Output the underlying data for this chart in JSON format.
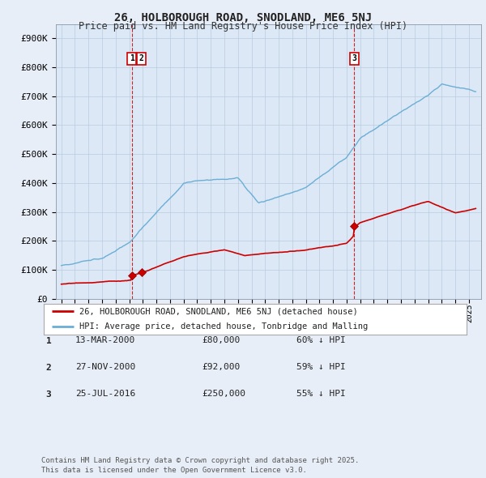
{
  "title": "26, HOLBOROUGH ROAD, SNODLAND, ME6 5NJ",
  "subtitle": "Price paid vs. HM Land Registry's House Price Index (HPI)",
  "hpi_color": "#6baed6",
  "price_color": "#cc0000",
  "background_color": "#e8eef8",
  "plot_bg_color": "#dce8f5",
  "ylim": [
    0,
    950000
  ],
  "yticks": [
    0,
    100000,
    200000,
    300000,
    400000,
    500000,
    600000,
    700000,
    800000,
    900000
  ],
  "ytick_labels": [
    "£0",
    "£100K",
    "£200K",
    "£300K",
    "£400K",
    "£500K",
    "£600K",
    "£700K",
    "£800K",
    "£900K"
  ],
  "transactions": [
    {
      "date_num": 2000.19,
      "price": 80000,
      "label": "1"
    },
    {
      "date_num": 2000.9,
      "price": 92000,
      "label": "2"
    },
    {
      "date_num": 2016.56,
      "price": 250000,
      "label": "3"
    }
  ],
  "vline_dates": [
    2000.19,
    2016.56
  ],
  "legend_entries": [
    "26, HOLBOROUGH ROAD, SNODLAND, ME6 5NJ (detached house)",
    "HPI: Average price, detached house, Tonbridge and Malling"
  ],
  "table_rows": [
    {
      "num": "1",
      "date": "13-MAR-2000",
      "price": "£80,000",
      "pct": "60% ↓ HPI"
    },
    {
      "num": "2",
      "date": "27-NOV-2000",
      "price": "£92,000",
      "pct": "59% ↓ HPI"
    },
    {
      "num": "3",
      "date": "25-JUL-2016",
      "price": "£250,000",
      "pct": "55% ↓ HPI"
    }
  ],
  "footnote": "Contains HM Land Registry data © Crown copyright and database right 2025.\nThis data is licensed under the Open Government Licence v3.0."
}
